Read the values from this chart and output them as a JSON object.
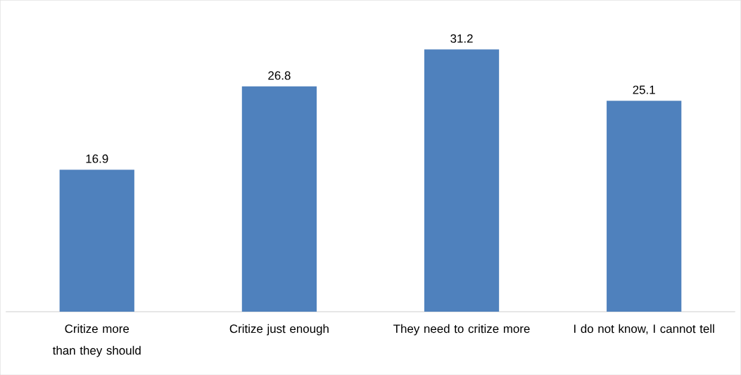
{
  "chart_data": {
    "type": "bar",
    "categories": [
      "Critize more than they should",
      "Critize just enough",
      "They need to critize more",
      "I do not know, I cannot tell"
    ],
    "values": [
      16.9,
      26.8,
      31.2,
      25.1
    ],
    "color": "#4f81bd",
    "data_labels": true
  }
}
